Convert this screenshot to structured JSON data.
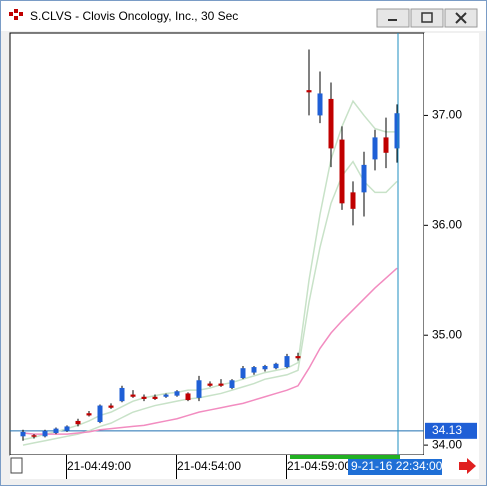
{
  "chart_data": {
    "type": "candlestick",
    "title": "S.CLVS - Clovis Oncology, Inc., 30 Sec",
    "categories": [
      null,
      null,
      null,
      null,
      "21-04:49:00",
      null,
      null,
      null,
      null,
      null,
      null,
      null,
      null,
      null,
      "21-04:54:00",
      null,
      null,
      null,
      null,
      null,
      null,
      null,
      null,
      null,
      "21-04:59:00",
      null,
      null,
      null,
      null,
      null,
      null,
      null,
      null,
      null,
      null
    ],
    "open": [
      34.08,
      34.09,
      34.08,
      34.11,
      34.13,
      34.22,
      34.29,
      34.21,
      34.36,
      34.4,
      34.46,
      34.44,
      34.44,
      34.44,
      34.45,
      34.47,
      34.43,
      34.56,
      34.56,
      34.52,
      34.61,
      34.66,
      34.69,
      34.7,
      34.71,
      34.81,
      37.23,
      37.0,
      37.15,
      36.78,
      36.3,
      36.3,
      36.6,
      36.8,
      36.7
    ],
    "high": [
      34.14,
      34.1,
      34.14,
      34.16,
      34.18,
      34.24,
      34.31,
      34.37,
      34.38,
      34.54,
      34.5,
      34.46,
      34.46,
      34.47,
      34.5,
      34.48,
      34.63,
      34.58,
      34.6,
      34.6,
      34.72,
      34.72,
      34.73,
      34.75,
      34.83,
      34.84,
      37.6,
      37.4,
      37.3,
      36.9,
      36.4,
      36.67,
      36.87,
      36.98,
      37.1
    ],
    "low": [
      34.04,
      34.06,
      34.07,
      34.1,
      34.12,
      34.17,
      34.26,
      34.2,
      34.33,
      34.39,
      34.43,
      34.4,
      34.41,
      34.43,
      34.44,
      34.4,
      34.4,
      34.53,
      34.53,
      34.51,
      34.6,
      34.64,
      34.67,
      34.69,
      34.7,
      34.77,
      37.0,
      36.93,
      36.53,
      36.14,
      36.0,
      36.08,
      36.5,
      36.52,
      36.57
    ],
    "close": [
      34.12,
      34.08,
      34.13,
      34.15,
      34.17,
      34.19,
      34.27,
      34.36,
      34.34,
      34.52,
      34.44,
      34.42,
      34.42,
      34.46,
      34.49,
      34.41,
      34.59,
      34.54,
      34.54,
      34.59,
      34.7,
      34.71,
      34.72,
      34.74,
      34.81,
      34.79,
      37.21,
      37.2,
      36.7,
      36.2,
      36.15,
      36.55,
      36.8,
      36.66,
      37.02
    ],
    "up_color": "#1f5fd6",
    "down_color": "#c00000",
    "series": [
      {
        "color": "#c8e2c8",
        "values": [
          34.05,
          34.07,
          34.1,
          34.12,
          34.15,
          34.18,
          34.22,
          34.27,
          34.3,
          34.35,
          34.4,
          34.43,
          34.45,
          34.47,
          34.48,
          34.5,
          34.5,
          34.52,
          34.55,
          34.57,
          34.6,
          34.63,
          34.66,
          34.68,
          34.7,
          34.75,
          35.5,
          36.1,
          36.6,
          36.9,
          37.13,
          37.0,
          36.88,
          36.85,
          36.85
        ]
      },
      {
        "color": "#c8e2c8",
        "values": [
          34.0,
          34.02,
          34.04,
          34.06,
          34.08,
          34.1,
          34.13,
          34.17,
          34.2,
          34.25,
          34.3,
          34.33,
          34.36,
          34.38,
          34.4,
          34.42,
          34.43,
          34.45,
          34.47,
          34.5,
          34.53,
          34.56,
          34.6,
          34.62,
          34.64,
          34.68,
          35.3,
          35.8,
          36.2,
          36.45,
          36.58,
          36.4,
          36.3,
          36.3,
          36.4
        ]
      },
      {
        "color": "#f28cc0",
        "values": [
          34.11,
          34.1,
          34.1,
          34.1,
          34.1,
          34.11,
          34.12,
          34.14,
          34.15,
          34.16,
          34.17,
          34.18,
          34.2,
          34.22,
          34.24,
          34.27,
          34.3,
          34.32,
          34.34,
          34.36,
          34.38,
          34.41,
          34.44,
          34.47,
          34.5,
          34.54,
          34.7,
          34.88,
          35.02,
          35.13,
          35.23,
          35.33,
          35.43,
          35.52,
          35.61
        ]
      }
    ],
    "ylim": [
      33.91,
      37.75
    ],
    "yticks": [
      {
        "value": 34,
        "label": "34.00"
      },
      {
        "value": 35,
        "label": "35.00"
      },
      {
        "value": 36,
        "label": "36.00"
      },
      {
        "value": 37,
        "label": "37.00"
      }
    ],
    "last_price": 34.13,
    "cursor_time": "9-21-16 22:34:00"
  }
}
